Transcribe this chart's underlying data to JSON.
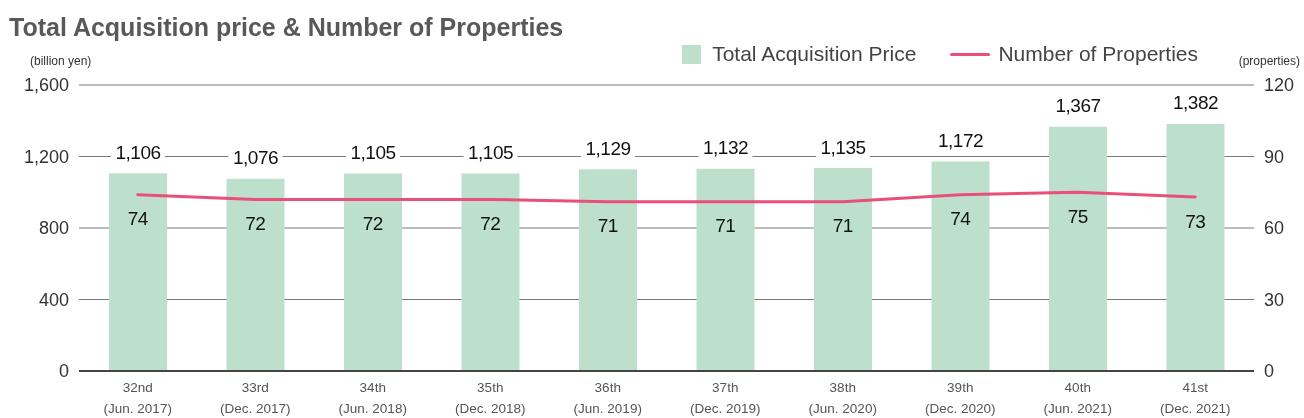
{
  "chart_data": {
    "type": "bar",
    "title": "Total Acquisition price & Number of Properties",
    "ylabel": "(billion yen)",
    "y2label": "(properties)",
    "categories": [
      "32nd\n(Jun. 2017)",
      "33rd\n(Dec. 2017)",
      "34th\n(Jun. 2018)",
      "35th\n(Dec. 2018)",
      "36th\n(Jun. 2019)",
      "37th\n(Dec. 2019)",
      "38th\n(Jun. 2020)",
      "39th\n(Dec. 2020)",
      "40th\n(Jun. 2021)",
      "41st\n(Dec. 2021)"
    ],
    "series": [
      {
        "name": "Total Acquisition Price",
        "color": "#bde0cd",
        "values": [
          1106,
          1076,
          1105,
          1105,
          1129,
          1132,
          1135,
          1172,
          1367,
          1382
        ],
        "value_labels": [
          "1,106",
          "1,076",
          "1,105",
          "1,105",
          "1,129",
          "1,132",
          "1,135",
          "1,172",
          "1,367",
          "1,382"
        ]
      },
      {
        "name": "Number of Properties",
        "type": "line",
        "axis": "y2",
        "color": "#e94f78",
        "values": [
          74,
          72,
          72,
          72,
          71,
          71,
          71,
          74,
          75,
          73
        ]
      }
    ],
    "ylim": [
      0,
      1600
    ],
    "yticks": [
      0,
      400,
      800,
      {
        "value": 1200,
        "label": "1,200"
      },
      {
        "value": 1600,
        "label": "1,600"
      }
    ],
    "y2lim": [
      0,
      120
    ],
    "y2ticks": [
      0,
      30,
      60,
      90,
      120
    ],
    "grid": "y",
    "legend": "top right",
    "data_labels": true,
    "marker": "none",
    "line_style": "solid"
  }
}
